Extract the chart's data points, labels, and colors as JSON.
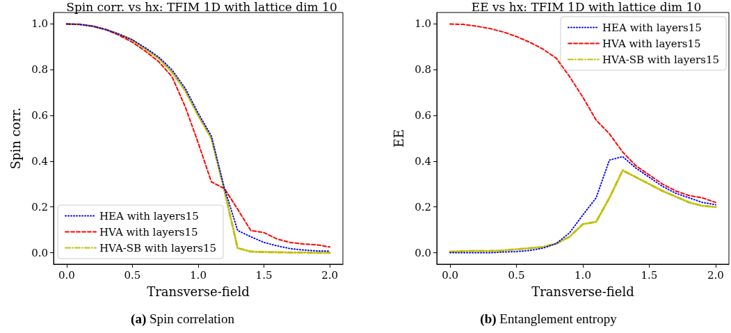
{
  "chart_data": [
    {
      "type": "line",
      "title": "Spin corr. vs hx: TFIM 1D with lattice dim 10",
      "xlabel": "Transverse-field",
      "ylabel": "Spin corr.",
      "annotations": [
        "(a) Spin correlation"
      ],
      "x": [
        0,
        0.1,
        0.2,
        0.3,
        0.4,
        0.5,
        0.6,
        0.7,
        0.8,
        0.9,
        1.0,
        1.1,
        1.2,
        1.3,
        1.4,
        1.5,
        1.6,
        1.7,
        1.8,
        1.9,
        2.0
      ],
      "series": [
        {
          "name": "HEA with layers15",
          "color": "#0000ff",
          "line_style": "dotted",
          "values": [
            1.0,
            0.998,
            0.99,
            0.975,
            0.955,
            0.93,
            0.895,
            0.855,
            0.8,
            0.72,
            0.61,
            0.51,
            0.28,
            0.097,
            0.07,
            0.045,
            0.03,
            0.018,
            0.012,
            0.008,
            0.007
          ]
        },
        {
          "name": "HVA with layers15",
          "color": "#ff0000",
          "line_style": "dashed",
          "values": [
            1.0,
            0.998,
            0.99,
            0.975,
            0.95,
            0.92,
            0.88,
            0.835,
            0.77,
            0.64,
            0.48,
            0.31,
            0.28,
            0.19,
            0.097,
            0.088,
            0.06,
            0.045,
            0.038,
            0.035,
            0.025
          ]
        },
        {
          "name": "HVA-SB with layers15",
          "color": "#bfbf00",
          "line_style": "dashdot",
          "values": [
            1.0,
            0.998,
            0.99,
            0.975,
            0.955,
            0.93,
            0.89,
            0.85,
            0.79,
            0.71,
            0.6,
            0.5,
            0.27,
            0.02,
            0.005,
            0.003,
            0.002,
            0.001,
            0.001,
            0.0,
            0.0
          ]
        }
      ],
      "xlim": [
        -0.1,
        2.1
      ],
      "xticks": [
        {
          "value": 0,
          "label": "0.0"
        },
        {
          "value": 0.5,
          "label": "0.5"
        },
        {
          "value": 1,
          "label": "1.0"
        },
        {
          "value": 1.5,
          "label": "1.5"
        },
        {
          "value": 2,
          "label": "2.0"
        }
      ],
      "ylim": [
        -0.05,
        1.05
      ],
      "yticks": [
        {
          "value": 0,
          "label": "0.0"
        },
        {
          "value": 0.2,
          "label": "0.2"
        },
        {
          "value": 0.4,
          "label": "0.4"
        },
        {
          "value": 0.6,
          "label": "0.6"
        },
        {
          "value": 0.8,
          "label": "0.8"
        },
        {
          "value": 1,
          "label": "1.0"
        }
      ],
      "grid": false,
      "legend": "bottom left",
      "marker": "none"
    },
    {
      "type": "line",
      "title": "EE vs hx: TFIM 1D with lattice dim 10",
      "xlabel": "Transverse-field",
      "ylabel": "EE",
      "annotations": [
        "(b) Entanglement entropy"
      ],
      "x": [
        0,
        0.1,
        0.2,
        0.3,
        0.4,
        0.5,
        0.6,
        0.7,
        0.8,
        0.9,
        1.0,
        1.1,
        1.2,
        1.3,
        1.4,
        1.5,
        1.6,
        1.7,
        1.8,
        1.9,
        2.0
      ],
      "series": [
        {
          "name": "HEA with layers15",
          "color": "#0000ff",
          "line_style": "dotted",
          "values": [
            0.0,
            0.0,
            0.0,
            0.0,
            0.003,
            0.005,
            0.01,
            0.02,
            0.04,
            0.087,
            0.165,
            0.24,
            0.405,
            0.42,
            0.37,
            0.33,
            0.29,
            0.26,
            0.24,
            0.22,
            0.21
          ]
        },
        {
          "name": "HVA with layers15",
          "color": "#ff0000",
          "line_style": "dashed",
          "values": [
            1.0,
            0.998,
            0.99,
            0.98,
            0.965,
            0.945,
            0.92,
            0.89,
            0.85,
            0.77,
            0.68,
            0.58,
            0.52,
            0.44,
            0.38,
            0.34,
            0.3,
            0.27,
            0.25,
            0.24,
            0.22
          ]
        },
        {
          "name": "HVA-SB with layers15",
          "color": "#bfbf00",
          "line_style": "dashdot",
          "values": [
            0.005,
            0.007,
            0.008,
            0.008,
            0.01,
            0.015,
            0.02,
            0.025,
            0.04,
            0.07,
            0.125,
            0.135,
            0.24,
            0.36,
            0.33,
            0.3,
            0.27,
            0.245,
            0.22,
            0.205,
            0.2
          ]
        }
      ],
      "xlim": [
        -0.1,
        2.1
      ],
      "xticks": [
        {
          "value": 0,
          "label": "0.0"
        },
        {
          "value": 0.5,
          "label": "0.5"
        },
        {
          "value": 1,
          "label": "1.0"
        },
        {
          "value": 1.5,
          "label": "1.5"
        },
        {
          "value": 2,
          "label": "2.0"
        }
      ],
      "ylim": [
        -0.05,
        1.05
      ],
      "yticks": [
        {
          "value": 0,
          "label": "0.0"
        },
        {
          "value": 0.2,
          "label": "0.2"
        },
        {
          "value": 0.4,
          "label": "0.4"
        },
        {
          "value": 0.6,
          "label": "0.6"
        },
        {
          "value": 0.8,
          "label": "0.8"
        },
        {
          "value": 1,
          "label": "1.0"
        }
      ],
      "grid": false,
      "legend": "top right",
      "marker": "none"
    }
  ]
}
